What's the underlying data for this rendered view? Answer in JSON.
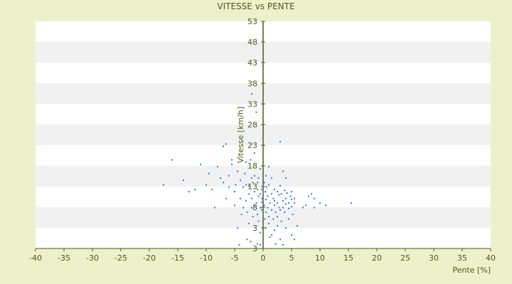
{
  "chart_data": {
    "type": "scatter",
    "title": "VITESSE vs PENTE",
    "xlabel": "Pente [%]",
    "ylabel": "Vitesse [km/h]",
    "xlim": [
      -40,
      40
    ],
    "ylim": [
      3,
      53
    ],
    "x_ticks": [
      "-40",
      "-35",
      "-30",
      "-25",
      "-20",
      "-15",
      "-10",
      "-5",
      "0",
      "5",
      "10",
      "15",
      "20",
      "25",
      "30",
      "35",
      "40"
    ],
    "y_ticks": [
      "3",
      "3",
      "8",
      "13",
      "18",
      "23",
      "28",
      "33",
      "38",
      "43",
      "48",
      "53"
    ],
    "grid": true,
    "band_colors": [
      "#ffffff",
      "#f1f1f1"
    ],
    "axis_color": "#4b5a1a",
    "point_color": "#2f7fd0",
    "points": [
      [
        -17.5,
        17
      ],
      [
        -16,
        22.5
      ],
      [
        -14,
        18
      ],
      [
        -13,
        15.5
      ],
      [
        -12,
        16
      ],
      [
        -11,
        21.5
      ],
      [
        -10,
        17
      ],
      [
        -9.5,
        19.5
      ],
      [
        -9,
        16
      ],
      [
        -8.5,
        12
      ],
      [
        -8,
        21
      ],
      [
        -7.5,
        18.5
      ],
      [
        -7,
        17.5
      ],
      [
        -7,
        25.5
      ],
      [
        -6.5,
        14
      ],
      [
        -6.5,
        26
      ],
      [
        -6,
        16.5
      ],
      [
        -6,
        19
      ],
      [
        -5.5,
        22.5
      ],
      [
        -5.5,
        21.5
      ],
      [
        -5,
        15.5
      ],
      [
        -5,
        12.5
      ],
      [
        -4.8,
        17
      ],
      [
        -4.5,
        20
      ],
      [
        -4.5,
        7.5
      ],
      [
        -4.2,
        3.8
      ],
      [
        -4,
        14
      ],
      [
        -4,
        18
      ],
      [
        -3.8,
        10.5
      ],
      [
        -3.5,
        16.5
      ],
      [
        -3.5,
        12
      ],
      [
        -3.2,
        19.5
      ],
      [
        -3,
        17
      ],
      [
        -3,
        13.5
      ],
      [
        -3,
        22
      ],
      [
        -2.8,
        11
      ],
      [
        -2.8,
        5
      ],
      [
        -2.5,
        15
      ],
      [
        -2.5,
        16.8
      ],
      [
        -2.5,
        8.5
      ],
      [
        -2.2,
        22.5
      ],
      [
        -2.2,
        4.5
      ],
      [
        -2,
        18.5
      ],
      [
        -2,
        14
      ],
      [
        -2,
        12
      ],
      [
        -2,
        26
      ],
      [
        -2,
        37
      ],
      [
        -1.8,
        17.5
      ],
      [
        -1.8,
        10
      ],
      [
        -1.5,
        15.5
      ],
      [
        -1.5,
        12.5
      ],
      [
        -1.5,
        19
      ],
      [
        -1.5,
        24
      ],
      [
        -1.2,
        13
      ],
      [
        -1.2,
        8
      ],
      [
        -1.2,
        33
      ],
      [
        -1,
        16
      ],
      [
        -1,
        17.5
      ],
      [
        -1,
        10.5
      ],
      [
        -1,
        4
      ],
      [
        -0.8,
        14.5
      ],
      [
        -0.8,
        18.5
      ],
      [
        -0.8,
        9
      ],
      [
        -0.5,
        15
      ],
      [
        -0.5,
        12
      ],
      [
        -0.5,
        20.5
      ],
      [
        -0.5,
        6.5
      ],
      [
        -0.5,
        3.8
      ],
      [
        -0.3,
        11.5
      ],
      [
        -0.3,
        16
      ],
      [
        -0.2,
        14
      ],
      [
        -0.2,
        13.2
      ],
      [
        0.2,
        17.5
      ],
      [
        0.2,
        12.5
      ],
      [
        0.3,
        9.5
      ],
      [
        0.4,
        15.5
      ],
      [
        0.5,
        19
      ],
      [
        0.5,
        11
      ],
      [
        0.5,
        13.8
      ],
      [
        0.5,
        7.5
      ],
      [
        0.6,
        16.5
      ],
      [
        0.8,
        12
      ],
      [
        0.8,
        14.5
      ],
      [
        1,
        10
      ],
      [
        1,
        17
      ],
      [
        1,
        21
      ],
      [
        1,
        8.5
      ],
      [
        1.2,
        13
      ],
      [
        1.2,
        5.5
      ],
      [
        1.5,
        15
      ],
      [
        1.5,
        11.5
      ],
      [
        1.5,
        18.5
      ],
      [
        1.5,
        6
      ],
      [
        1.8,
        14
      ],
      [
        1.8,
        9.5
      ],
      [
        2,
        16
      ],
      [
        2,
        12.5
      ],
      [
        2,
        13.5
      ],
      [
        2,
        7
      ],
      [
        2.2,
        11
      ],
      [
        2.2,
        4
      ],
      [
        2.5,
        15.5
      ],
      [
        2.5,
        13
      ],
      [
        2.5,
        10
      ],
      [
        2.5,
        8
      ],
      [
        2.8,
        14.8
      ],
      [
        2.8,
        12
      ],
      [
        3,
        16.8
      ],
      [
        3,
        26.5
      ],
      [
        3,
        11.5
      ],
      [
        3,
        5
      ],
      [
        3.2,
        15
      ],
      [
        3.2,
        9
      ],
      [
        3.5,
        13.5
      ],
      [
        3.5,
        12
      ],
      [
        3.5,
        20
      ],
      [
        3.5,
        3.8
      ],
      [
        3.8,
        15.8
      ],
      [
        3.8,
        11
      ],
      [
        4,
        14
      ],
      [
        4,
        12.8
      ],
      [
        4,
        18.5
      ],
      [
        4,
        7.5
      ],
      [
        4.2,
        15.2
      ],
      [
        4.5,
        13
      ],
      [
        4.5,
        11.8
      ],
      [
        4.5,
        9.5
      ],
      [
        4.8,
        14.5
      ],
      [
        5,
        13.8
      ],
      [
        5,
        12.2
      ],
      [
        5,
        15.5
      ],
      [
        5,
        6
      ],
      [
        5.2,
        10.5
      ],
      [
        5.5,
        14
      ],
      [
        5.5,
        13
      ],
      [
        5.5,
        5
      ],
      [
        6,
        8
      ],
      [
        7,
        12
      ],
      [
        7.5,
        12.5
      ],
      [
        8,
        14.5
      ],
      [
        8.5,
        15
      ],
      [
        9,
        12
      ],
      [
        9,
        14
      ],
      [
        10,
        13
      ],
      [
        11,
        12.5
      ],
      [
        15.5,
        13
      ]
    ]
  }
}
